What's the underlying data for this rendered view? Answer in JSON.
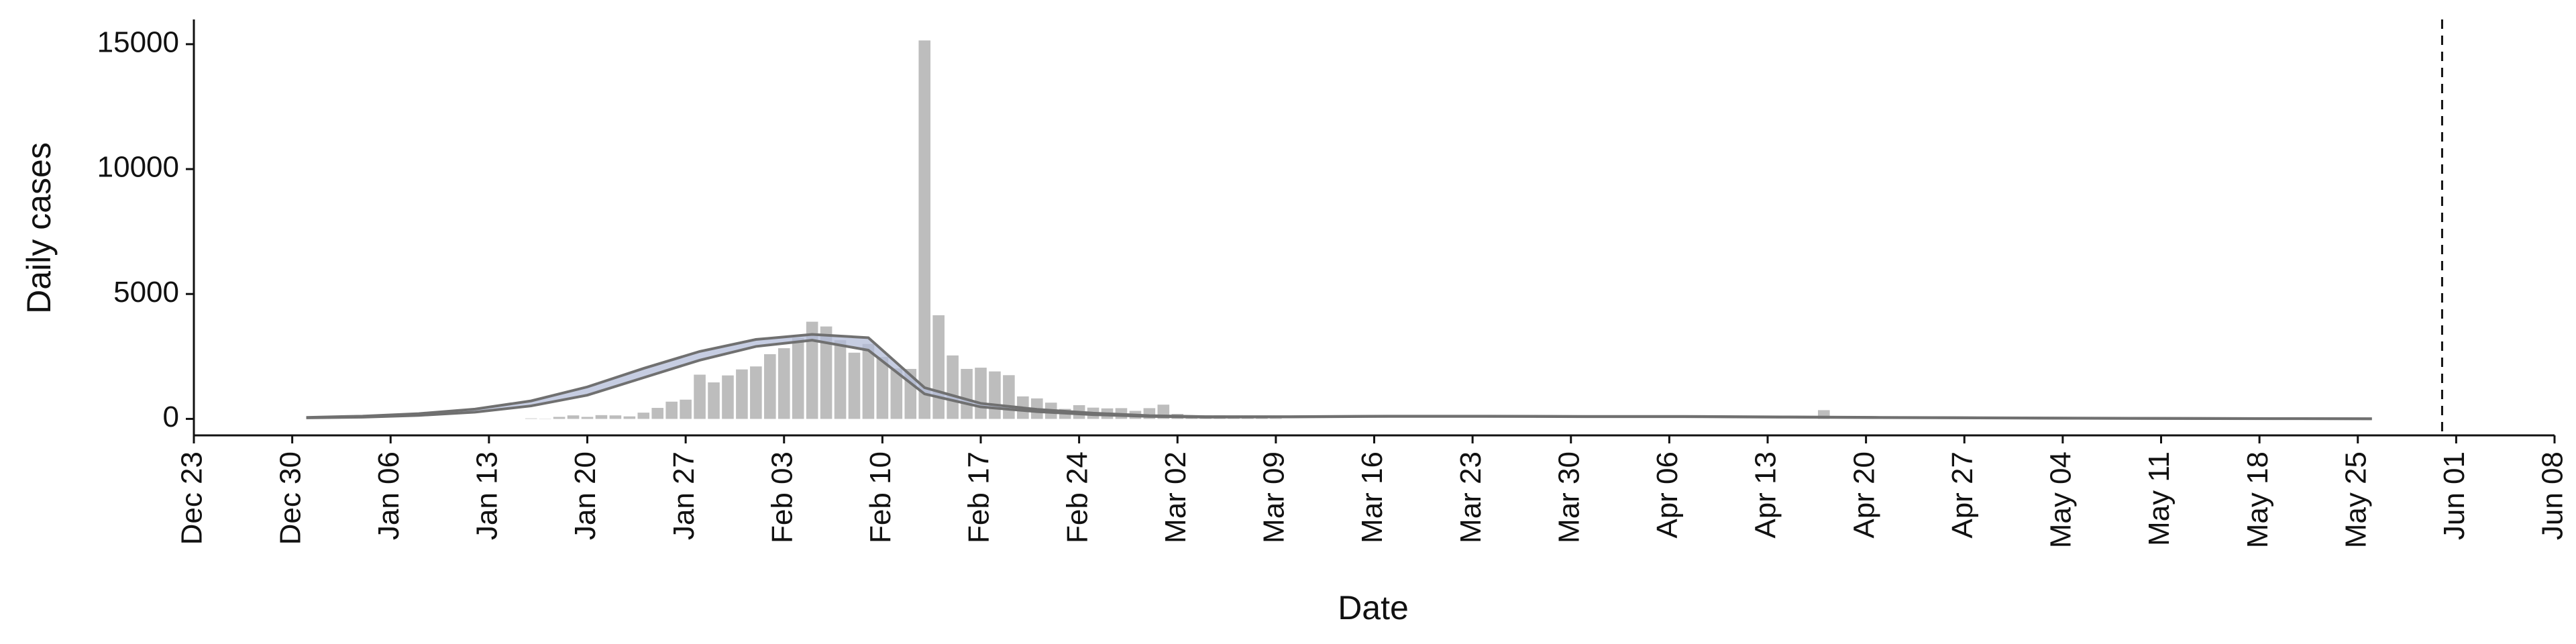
{
  "chart_data": {
    "type": "bar",
    "ylabel": "Daily cases",
    "xlabel": "Date",
    "ylim": [
      -660,
      15990
    ],
    "yticks": [
      0,
      5000,
      10000,
      15000
    ],
    "xlim": [
      "Dec 23",
      "Jun 08"
    ],
    "xticks": [
      "Dec 23",
      "Dec 30",
      "Jan 06",
      "Jan 13",
      "Jan 20",
      "Jan 27",
      "Feb 03",
      "Feb 10",
      "Feb 17",
      "Feb 24",
      "Mar 02",
      "Mar 09",
      "Mar 16",
      "Mar 23",
      "Mar 30",
      "Apr 06",
      "Apr 13",
      "Apr 20",
      "Apr 27",
      "May 04",
      "May 11",
      "May 18",
      "May 25",
      "Jun 01",
      "Jun 08"
    ],
    "color": "#bdbdbd",
    "x": [
      "Jan 16",
      "Jan 17",
      "Jan 18",
      "Jan 19",
      "Jan 20",
      "Jan 21",
      "Jan 22",
      "Jan 23",
      "Jan 24",
      "Jan 25",
      "Jan 26",
      "Jan 27",
      "Jan 28",
      "Jan 29",
      "Jan 30",
      "Jan 31",
      "Feb 01",
      "Feb 02",
      "Feb 03",
      "Feb 04",
      "Feb 05",
      "Feb 06",
      "Feb 07",
      "Feb 08",
      "Feb 09",
      "Feb 10",
      "Feb 11",
      "Feb 12",
      "Feb 13",
      "Feb 14",
      "Feb 15",
      "Feb 16",
      "Feb 17",
      "Feb 18",
      "Feb 19",
      "Feb 20",
      "Feb 21",
      "Feb 22",
      "Feb 23",
      "Feb 24",
      "Feb 25",
      "Feb 26",
      "Feb 27",
      "Feb 28",
      "Feb 29",
      "Mar 01",
      "Mar 02",
      "Mar 03",
      "Mar 04",
      "Mar 05",
      "Mar 06",
      "Mar 07",
      "Mar 08",
      "Mar 09",
      "Apr 17"
    ],
    "values": [
      20,
      10,
      80,
      140,
      80,
      150,
      140,
      100,
      250,
      440,
      690,
      770,
      1770,
      1460,
      1740,
      1980,
      2100,
      2590,
      2830,
      3240,
      3890,
      3700,
      3150,
      2650,
      3000,
      2480,
      2020,
      2000,
      15150,
      4150,
      2540,
      2000,
      2050,
      1900,
      1750,
      900,
      820,
      650,
      400,
      550,
      450,
      420,
      430,
      320,
      430,
      570,
      200,
      120,
      140,
      140,
      100,
      40,
      40,
      20,
      350
    ],
    "band": {
      "x": [
        "Dec 31",
        "Jan 04",
        "Jan 08",
        "Jan 12",
        "Jan 16",
        "Jan 20",
        "Jan 24",
        "Jan 28",
        "Feb 01",
        "Feb 05",
        "Feb 09",
        "Feb 13",
        "Feb 17",
        "Feb 21",
        "Feb 25",
        "Feb 29",
        "Mar 04",
        "Mar 10",
        "Mar 17",
        "Mar 24",
        "Mar 31",
        "Apr 07",
        "Apr 14",
        "Apr 21",
        "Apr 28",
        "May 05",
        "May 12",
        "May 19",
        "May 26"
      ],
      "upper": [
        60,
        110,
        210,
        390,
        720,
        1280,
        2020,
        2700,
        3180,
        3380,
        3250,
        1250,
        620,
        380,
        230,
        130,
        90,
        90,
        110,
        110,
        100,
        100,
        80,
        60,
        45,
        30,
        20,
        12,
        6
      ],
      "lower": [
        40,
        70,
        140,
        270,
        520,
        950,
        1650,
        2350,
        2900,
        3150,
        2750,
        1000,
        480,
        290,
        170,
        100,
        70,
        80,
        100,
        100,
        90,
        90,
        70,
        50,
        38,
        25,
        15,
        9,
        4
      ],
      "fill": "#b3bcd8",
      "line_color": "#707070"
    },
    "vline": "May 31"
  }
}
